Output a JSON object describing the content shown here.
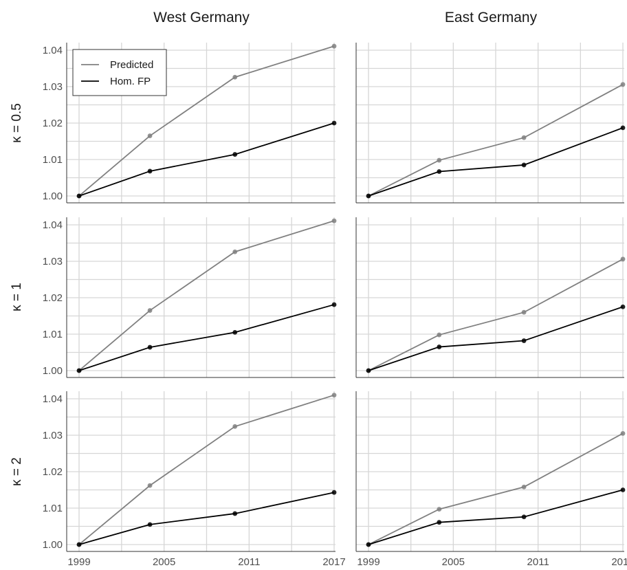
{
  "chart_data": {
    "type": "line",
    "column_titles": [
      "West Germany",
      "East Germany"
    ],
    "row_labels": [
      "κ = 0.5",
      "κ = 1",
      "κ = 2"
    ],
    "x": [
      1999,
      2004,
      2010,
      2017
    ],
    "x_ticks": [
      "1999",
      "2005",
      "2011",
      "2017"
    ],
    "y_ticks": [
      "1.00",
      "1.01",
      "1.02",
      "1.03",
      "1.04"
    ],
    "xlim": [
      1999,
      2017
    ],
    "ylim": [
      0.998,
      1.042
    ],
    "grid": true,
    "legend": {
      "placement": "top-left",
      "entries": [
        {
          "name": "Predicted",
          "color": "#808080"
        },
        {
          "name": "Hom. FP",
          "color": "#000000"
        }
      ]
    },
    "panels": [
      {
        "row": 0,
        "col": 0,
        "series": [
          {
            "name": "Predicted",
            "values": [
              1.0,
              1.0165,
              1.0326,
              1.0411
            ]
          },
          {
            "name": "Hom. FP",
            "values": [
              1.0,
              1.0068,
              1.0114,
              1.02
            ]
          }
        ]
      },
      {
        "row": 0,
        "col": 1,
        "series": [
          {
            "name": "Predicted",
            "values": [
              1.0,
              1.0098,
              1.016,
              1.0306
            ]
          },
          {
            "name": "Hom. FP",
            "values": [
              1.0,
              1.0067,
              1.0085,
              1.0187
            ]
          }
        ]
      },
      {
        "row": 1,
        "col": 0,
        "series": [
          {
            "name": "Predicted",
            "values": [
              1.0,
              1.0165,
              1.0326,
              1.0411
            ]
          },
          {
            "name": "Hom. FP",
            "values": [
              1.0,
              1.0064,
              1.0105,
              1.0181
            ]
          }
        ]
      },
      {
        "row": 1,
        "col": 1,
        "series": [
          {
            "name": "Predicted",
            "values": [
              1.0,
              1.0098,
              1.016,
              1.0306
            ]
          },
          {
            "name": "Hom. FP",
            "values": [
              1.0,
              1.0065,
              1.0082,
              1.0175
            ]
          }
        ]
      },
      {
        "row": 2,
        "col": 0,
        "series": [
          {
            "name": "Predicted",
            "values": [
              1.0,
              1.0162,
              1.0324,
              1.041
            ]
          },
          {
            "name": "Hom. FP",
            "values": [
              1.0,
              1.0055,
              1.0085,
              1.0143
            ]
          }
        ]
      },
      {
        "row": 2,
        "col": 1,
        "series": [
          {
            "name": "Predicted",
            "values": [
              1.0,
              1.0097,
              1.0158,
              1.0305
            ]
          },
          {
            "name": "Hom. FP",
            "values": [
              1.0,
              1.0061,
              1.0076,
              1.015
            ]
          }
        ]
      }
    ]
  }
}
